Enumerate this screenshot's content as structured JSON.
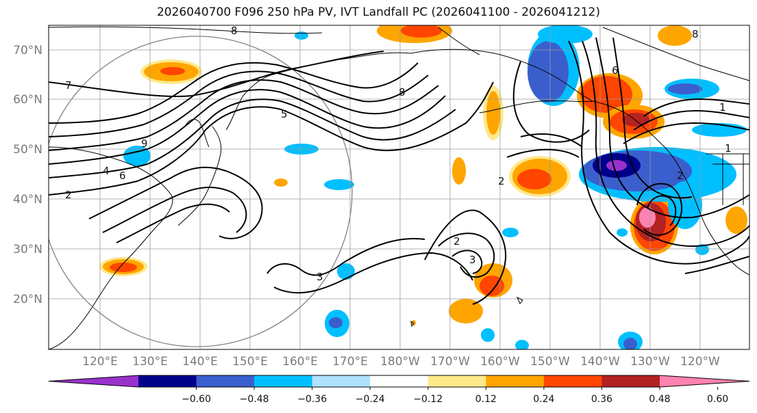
{
  "title": "2026040700 F096 250 hPa PV, IVT Landfall PC (2026041100 - 2026041212)",
  "lat_labels": [
    "70°N",
    "60°N",
    "50°N",
    "40°N",
    "30°N",
    "20°N"
  ],
  "lon_labels": [
    "120°E",
    "130°E",
    "140°E",
    "150°E",
    "160°E",
    "170°E",
    "180°W",
    "170°W",
    "160°W",
    "150°W",
    "140°W",
    "130°W",
    "120°W"
  ],
  "contour_labels": [
    "7",
    "8",
    "9",
    "8",
    "5",
    "6",
    "4",
    "2",
    "3",
    "2",
    "3",
    "2",
    "6",
    "1",
    "1",
    "2",
    "8"
  ],
  "colorbar": {
    "ticks": [
      "−0.60",
      "−0.48",
      "−0.36",
      "−0.24",
      "−0.12",
      "0.12",
      "0.24",
      "0.36",
      "0.48",
      "0.60"
    ],
    "colors": [
      "#9932cc",
      "#00008b",
      "#3a5fcd",
      "#00bfff",
      "#b0e2ff",
      "#ffffff",
      "#ffe98a",
      "#ffa500",
      "#ff4500",
      "#b22222",
      "#ff83b0"
    ]
  },
  "colors": {
    "land_outline": "#000000",
    "grid": "#9a9a9a",
    "contour": "#000000"
  }
}
